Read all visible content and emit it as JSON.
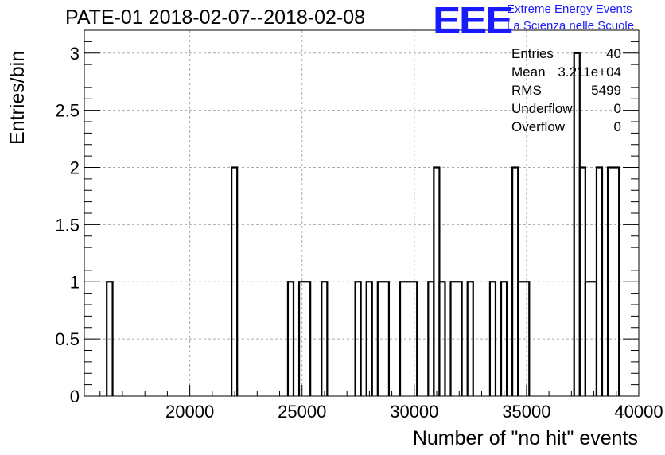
{
  "header": {
    "title": "PATE-01 2018-02-07--2018-02-08",
    "logo_text": "EEE",
    "logo_line1": "Extreme Energy Events",
    "logo_line2": "La Scienza nelle Scuole"
  },
  "stats_box": {
    "rows": [
      {
        "label": "Entries",
        "value": "40"
      },
      {
        "label": "Mean",
        "value": "3.211e+04"
      },
      {
        "label": "RMS",
        "value": "5499"
      },
      {
        "label": "Underflow",
        "value": "0"
      },
      {
        "label": "Overflow",
        "value": "0"
      }
    ]
  },
  "chart_data": {
    "type": "histogram",
    "title": "PATE-01 2018-02-07--2018-02-08",
    "xlabel": "Number of \"no hit\" events",
    "ylabel": "Entries/bin",
    "xlim": [
      15300,
      40000
    ],
    "ylim": [
      0,
      3.2
    ],
    "grid": true,
    "x_ticks": [
      20000,
      25000,
      30000,
      35000,
      40000
    ],
    "x_tick_labels": [
      "20000",
      "25000",
      "30000",
      "35000",
      "40000"
    ],
    "y_ticks": [
      0,
      0.5,
      1,
      1.5,
      2,
      2.5,
      3
    ],
    "y_tick_labels": [
      "0",
      "0.5",
      "1",
      "1.5",
      "2",
      "2.5",
      "3"
    ],
    "bins": [
      {
        "x0": 16300,
        "x1": 16560,
        "count": 1
      },
      {
        "x0": 21860,
        "x1": 22110,
        "count": 2
      },
      {
        "x0": 24370,
        "x1": 24620,
        "count": 1
      },
      {
        "x0": 24870,
        "x1": 25370,
        "count": 1
      },
      {
        "x0": 25870,
        "x1": 26120,
        "count": 1
      },
      {
        "x0": 27370,
        "x1": 27620,
        "count": 1
      },
      {
        "x0": 27870,
        "x1": 28120,
        "count": 1
      },
      {
        "x0": 28370,
        "x1": 28870,
        "count": 1
      },
      {
        "x0": 29370,
        "x1": 30120,
        "count": 1
      },
      {
        "x0": 30620,
        "x1": 30870,
        "count": 1
      },
      {
        "x0": 30870,
        "x1": 31120,
        "count": 2
      },
      {
        "x0": 31120,
        "x1": 31370,
        "count": 1
      },
      {
        "x0": 31620,
        "x1": 32120,
        "count": 1
      },
      {
        "x0": 32370,
        "x1": 32620,
        "count": 1
      },
      {
        "x0": 33370,
        "x1": 33620,
        "count": 1
      },
      {
        "x0": 33870,
        "x1": 34120,
        "count": 1
      },
      {
        "x0": 34370,
        "x1": 34620,
        "count": 2
      },
      {
        "x0": 34620,
        "x1": 35120,
        "count": 1
      },
      {
        "x0": 37120,
        "x1": 37370,
        "count": 3
      },
      {
        "x0": 37370,
        "x1": 37620,
        "count": 2
      },
      {
        "x0": 37620,
        "x1": 38120,
        "count": 1
      },
      {
        "x0": 38120,
        "x1": 38370,
        "count": 2
      },
      {
        "x0": 38620,
        "x1": 39120,
        "count": 2
      }
    ]
  }
}
